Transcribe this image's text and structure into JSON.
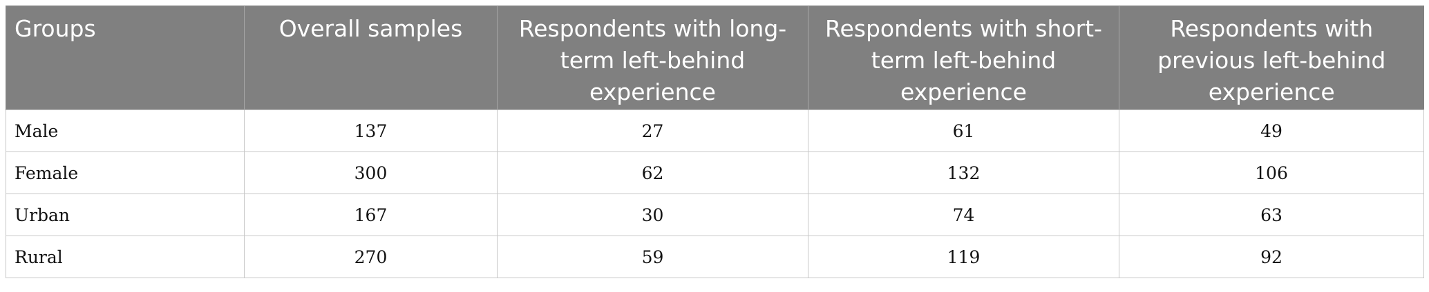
{
  "table": {
    "headers": [
      "Groups",
      "Overall samples",
      "Respondents with long-term left-behind experience",
      "Respondents with short-term left-behind experience",
      "Respondents with previous left-behind experience"
    ],
    "rows": [
      [
        "Male",
        "137",
        "27",
        "61",
        "49"
      ],
      [
        "Female",
        "300",
        "62",
        "132",
        "106"
      ],
      [
        "Urban",
        "167",
        "30",
        "74",
        "63"
      ],
      [
        "Rural",
        "270",
        "59",
        "119",
        "92"
      ]
    ]
  },
  "colors": {
    "header_bg": "#808080",
    "header_text": "#ffffff",
    "grid": "#c6c6c6"
  }
}
